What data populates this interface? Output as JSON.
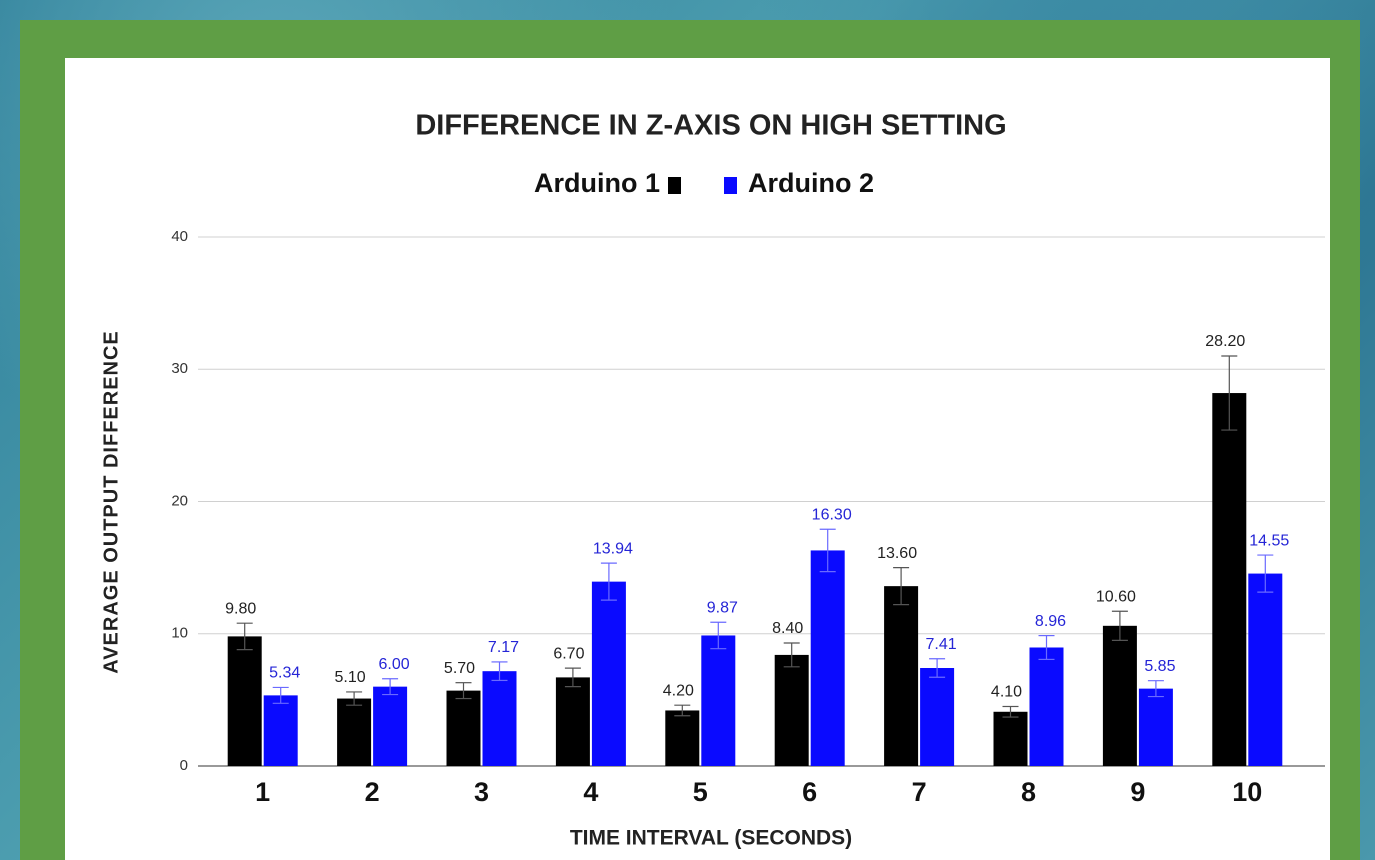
{
  "chart_data": {
    "type": "bar",
    "title": "DIFFERENCE IN Z-AXIS ON HIGH SETTING",
    "x_label": "TIME INTERVAL (SECONDS)",
    "y_label": "AVERAGE OUTPUT DIFFERENCE",
    "categories": [
      "1",
      "2",
      "3",
      "4",
      "5",
      "6",
      "7",
      "8",
      "9",
      "10"
    ],
    "series": [
      {
        "name": "Arduino 1",
        "color": "#000000",
        "label_color": "#222222",
        "values": [
          9.8,
          5.1,
          5.7,
          6.7,
          4.2,
          8.4,
          13.6,
          4.1,
          10.6,
          28.2
        ],
        "value_labels": [
          "9.80",
          "5.10",
          "5.70",
          "6.70",
          "4.20",
          "8.40",
          "13.60",
          "4.10",
          "10.60",
          "28.20"
        ],
        "errors": [
          1.0,
          0.5,
          0.6,
          0.7,
          0.4,
          0.9,
          1.4,
          0.4,
          1.1,
          2.8
        ]
      },
      {
        "name": "Arduino 2",
        "color": "#0a0aff",
        "label_color": "#2525d6",
        "values": [
          5.34,
          6.0,
          7.17,
          13.94,
          9.87,
          16.3,
          7.41,
          8.96,
          5.85,
          14.55
        ],
        "value_labels": [
          "5.34",
          "6.00",
          "7.17",
          "13.94",
          "9.87",
          "16.30",
          "7.41",
          "8.96",
          "5.85",
          "14.55"
        ],
        "errors": [
          0.6,
          0.6,
          0.7,
          1.4,
          1.0,
          1.6,
          0.7,
          0.9,
          0.6,
          1.4
        ]
      }
    ],
    "ylim": [
      0,
      40
    ],
    "yticks": [
      0,
      10,
      20,
      30,
      40
    ],
    "grid": true,
    "legend": "top"
  }
}
